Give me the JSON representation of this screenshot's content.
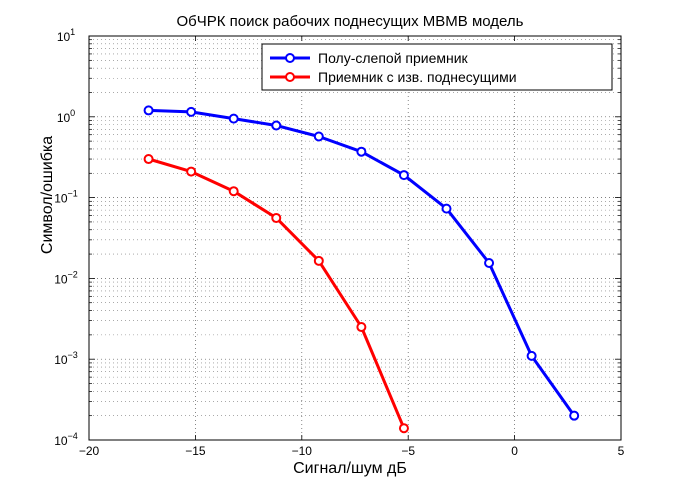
{
  "chart_data": {
    "type": "line",
    "title": "ОбЧРК поиск рабочих поднесущих МВМВ модель",
    "xlabel": "Сигнал/шум дБ",
    "ylabel": "Символ/ошибка",
    "xlim": [
      -20,
      5
    ],
    "ylim": [
      0.0001,
      10
    ],
    "yscale": "log",
    "grid": true,
    "legend_position": "top-right",
    "xticks": [
      -20,
      -15,
      -10,
      -5,
      0,
      5
    ],
    "xtick_labels": [
      "−20",
      "−15",
      "−10",
      "−5",
      "0",
      "5"
    ],
    "yticks": [
      {
        "base": "10",
        "exp": "1",
        "value": 10
      },
      {
        "base": "10",
        "exp": "0",
        "value": 1
      },
      {
        "base": "10",
        "exp": "−1",
        "value": 0.1
      },
      {
        "base": "10",
        "exp": "−2",
        "value": 0.01
      },
      {
        "base": "10",
        "exp": "−3",
        "value": 0.001
      },
      {
        "base": "10",
        "exp": "−4",
        "value": 0.0001
      }
    ],
    "series": [
      {
        "name": "Полу-слепой приемник",
        "color": "#0000ff",
        "x": [
          -17.2,
          -15.2,
          -13.2,
          -11.2,
          -9.2,
          -7.2,
          -5.2,
          -3.2,
          -1.2,
          0.8,
          2.8
        ],
        "y": [
          1.2,
          1.15,
          0.95,
          0.78,
          0.57,
          0.37,
          0.19,
          0.073,
          0.0155,
          0.0011,
          0.0002
        ]
      },
      {
        "name": "Приемник с изв. поднесущими",
        "color": "#ff0000",
        "x": [
          -17.2,
          -15.2,
          -13.2,
          -11.2,
          -9.2,
          -7.2,
          -5.2
        ],
        "y": [
          0.3,
          0.21,
          0.12,
          0.056,
          0.0165,
          0.0025,
          0.00014
        ]
      }
    ]
  }
}
